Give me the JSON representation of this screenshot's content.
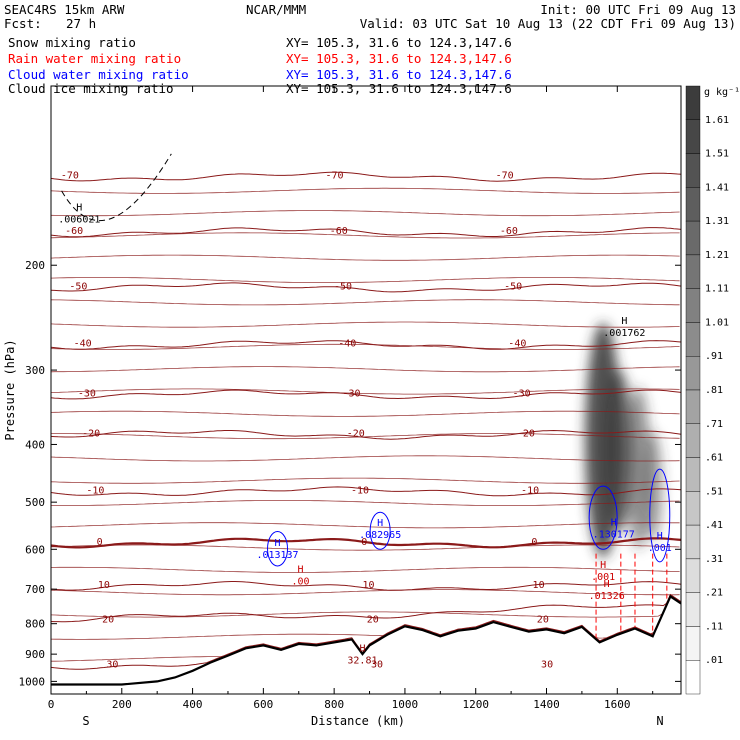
{
  "header": {
    "model": "SEAC4RS 15km ARW",
    "org": "NCAR/MMM",
    "init_label": "Init: 00 UTC Fri 09 Aug 13",
    "fcst_label": "Fcst:",
    "fcst_value": "27 h",
    "valid_label": "Valid: 03 UTC Sat 10 Aug 13 (22 CDT Fri 09 Aug 13)"
  },
  "fields": [
    {
      "name": "Snow mixing ratio",
      "xy": "XY= 105.3, 31.6 to 124.3,147.6",
      "color": "#000000"
    },
    {
      "name": "Rain water mixing ratio",
      "xy": "XY= 105.3, 31.6 to 124.3,147.6",
      "color": "#ff0000"
    },
    {
      "name": "Cloud water mixing ratio",
      "xy": "XY= 105.3, 31.6 to 124.3,147.6",
      "color": "#0000ff"
    },
    {
      "name": "Cloud ice mixing ratio",
      "xy": "XY= 105.3, 31.6 to 124.3,147.6",
      "color": "#000000"
    }
  ],
  "chart_data": {
    "type": "cross-section",
    "xlabel": "Distance (km)",
    "ylabel": "Pressure (hPa)",
    "xlim": [
      0,
      1780
    ],
    "ylim": [
      1050,
      100
    ],
    "y_log": true,
    "x_ticks": [
      0,
      200,
      400,
      600,
      800,
      1000,
      1200,
      1400,
      1600
    ],
    "y_ticks": [
      200,
      300,
      400,
      500,
      600,
      700,
      800,
      900,
      1000
    ],
    "endpoints": {
      "left": "S",
      "right": "N"
    },
    "colorbar": {
      "unit": "g kg⁻¹",
      "labels": [
        "1.61",
        "1.51",
        "1.41",
        "1.31",
        "1.21",
        "1.11",
        "1.01",
        ".91",
        ".81",
        ".71",
        ".61",
        ".51",
        ".41",
        ".31",
        ".21",
        ".11",
        ".01"
      ]
    },
    "temperature_contours": [
      {
        "label": "-70",
        "pressure": 142
      },
      {
        "label": "-60",
        "pressure": 176
      },
      {
        "label": "-50",
        "pressure": 218
      },
      {
        "label": "-40",
        "pressure": 272
      },
      {
        "label": "-30",
        "pressure": 330
      },
      {
        "label": "-20",
        "pressure": 385
      },
      {
        "label": "-10",
        "pressure": 480
      },
      {
        "label": "0",
        "pressure": 585
      },
      {
        "label": "10",
        "pressure": 692
      },
      {
        "label": "20",
        "pressure": 790
      },
      {
        "label": "30",
        "pressure": 940
      }
    ],
    "terrain": {
      "x": [
        0,
        100,
        200,
        300,
        350,
        400,
        450,
        500,
        550,
        600,
        650,
        700,
        750,
        800,
        850,
        880,
        900,
        950,
        1000,
        1050,
        1100,
        1150,
        1200,
        1250,
        1300,
        1350,
        1400,
        1450,
        1500,
        1550,
        1600,
        1650,
        1700,
        1750,
        1780
      ],
      "p": [
        1012,
        1012,
        1012,
        1000,
        985,
        960,
        930,
        905,
        880,
        870,
        885,
        865,
        870,
        860,
        850,
        900,
        870,
        835,
        808,
        820,
        840,
        822,
        815,
        795,
        810,
        825,
        818,
        830,
        810,
        860,
        835,
        815,
        840,
        720,
        740
      ]
    },
    "maxima": [
      {
        "field": "cloud ice",
        "label": ".006021",
        "x": 80,
        "p": 163
      },
      {
        "field": "snow",
        "label": ".001762",
        "x": 1620,
        "p": 253
      },
      {
        "field": "cloud water",
        "label": ".013137",
        "x": 640,
        "p": 597
      },
      {
        "field": "cloud water",
        "label": ".082965",
        "x": 930,
        "p": 553
      },
      {
        "field": "cloud water",
        "label": ".130177",
        "x": 1590,
        "p": 551
      },
      {
        "field": "cloud water",
        "label": ".001",
        "x": 1720,
        "p": 581
      },
      {
        "field": "rain water",
        "label": ".00",
        "x": 705,
        "p": 662
      },
      {
        "field": "rain water",
        "label": ".001",
        "x": 1560,
        "p": 650
      },
      {
        "field": "rain water",
        "label": ".01326",
        "x": 1570,
        "p": 700
      },
      {
        "field": "terrain",
        "label": "32.81",
        "x": 880,
        "p": 897
      }
    ],
    "max_marker": "H"
  }
}
